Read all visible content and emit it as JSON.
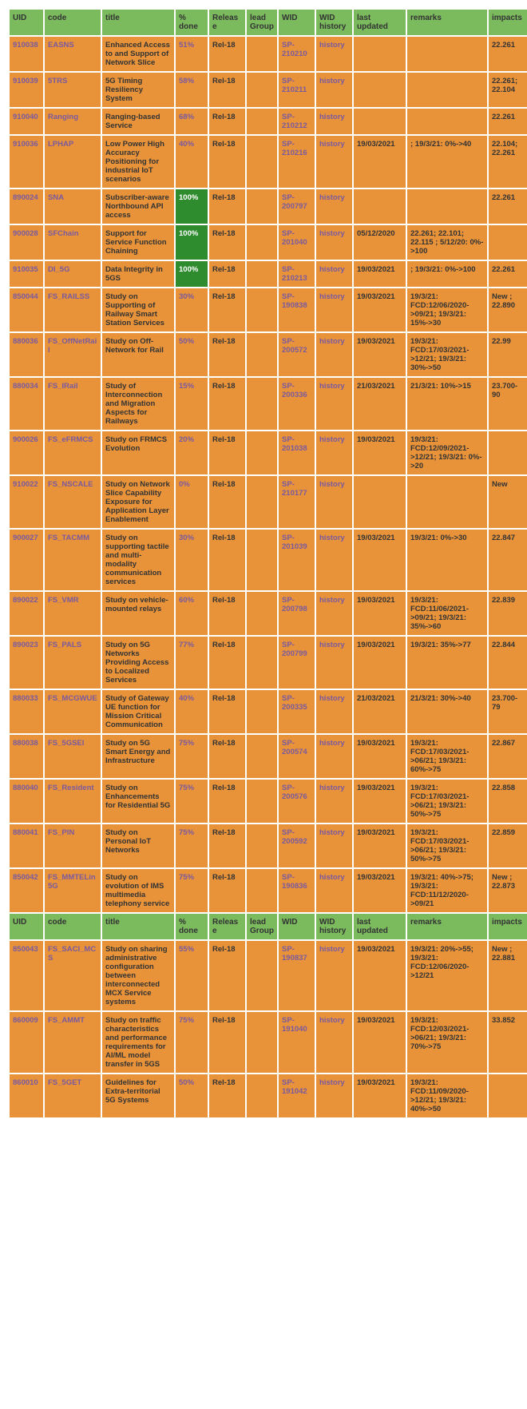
{
  "headers": [
    "UID",
    "code",
    "title",
    "% done",
    "Release",
    "lead Group",
    "WID",
    "WID history",
    "last updated",
    "remarks",
    "impacts"
  ],
  "rows": [
    {
      "uid": "910038",
      "code": "EASNS",
      "title": "Enhanced Access to and Support of Network Slice",
      "pct": "51%",
      "pct100": false,
      "release": "Rel-18",
      "lead": "",
      "wid": "SP-210210",
      "widh": "history",
      "last": "",
      "remarks": "",
      "impacts": "22.261"
    },
    {
      "uid": "910039",
      "code": "5TRS",
      "title": "5G Timing Resiliency System",
      "pct": "58%",
      "pct100": false,
      "release": "Rel-18",
      "lead": "",
      "wid": "SP-210211",
      "widh": "history",
      "last": "",
      "remarks": "",
      "impacts": "22.261; 22.104"
    },
    {
      "uid": "910040",
      "code": "Ranging",
      "title": "Ranging-based Service",
      "pct": "68%",
      "pct100": false,
      "release": "Rel-18",
      "lead": "",
      "wid": "SP-210212",
      "widh": "history",
      "last": "",
      "remarks": "",
      "impacts": "22.261"
    },
    {
      "uid": "910036",
      "code": "LPHAP",
      "title": "Low Power High Accuracy Positioning for industrial IoT scenarios",
      "pct": "40%",
      "pct100": false,
      "release": "Rel-18",
      "lead": "",
      "wid": "SP-210216",
      "widh": "history",
      "last": "19/03/2021",
      "remarks": "; 19/3/21: 0%->40",
      "impacts": "22.104; 22.261"
    },
    {
      "uid": "890024",
      "code": "SNA",
      "title": "Subscriber-aware Northbound API access",
      "pct": "100%",
      "pct100": true,
      "release": "Rel-18",
      "lead": "",
      "wid": "SP-200797",
      "widh": "history",
      "last": "",
      "remarks": "",
      "impacts": "22.261"
    },
    {
      "uid": "900028",
      "code": "SFChain",
      "title": "Support for Service Function Chaining",
      "pct": "100%",
      "pct100": true,
      "release": "Rel-18",
      "lead": "",
      "wid": "SP-201040",
      "widh": "history",
      "last": "05/12/2020",
      "remarks": "22.261; 22.101; 22.115 ; 5/12/20: 0%->100",
      "impacts": ""
    },
    {
      "uid": "910035",
      "code": "DI_5G",
      "title": "Data Integrity in 5GS",
      "pct": "100%",
      "pct100": true,
      "release": "Rel-18",
      "lead": "",
      "wid": "SP-210213",
      "widh": "history",
      "last": "19/03/2021",
      "remarks": "; 19/3/21: 0%->100",
      "impacts": "22.261"
    },
    {
      "uid": "850044",
      "code": "FS_RAILSS",
      "title": "Study on Supporting of Railway Smart Station Services",
      "pct": "30%",
      "pct100": false,
      "release": "Rel-18",
      "lead": "",
      "wid": "SP-190838",
      "widh": "history",
      "last": "19/03/2021",
      "remarks": "19/3/21: FCD:12/06/2020->09/21; 19/3/21: 15%->30",
      "impacts": "New ; 22.890"
    },
    {
      "uid": "880036",
      "code": "FS_OffNetRail",
      "title": "Study on Off-Network for Rail",
      "pct": "50%",
      "pct100": false,
      "release": "Rel-18",
      "lead": "",
      "wid": "SP-200572",
      "widh": "history",
      "last": "19/03/2021",
      "remarks": "19/3/21: FCD:17/03/2021->12/21; 19/3/21: 30%->50",
      "impacts": "22.99"
    },
    {
      "uid": "880034",
      "code": "FS_IRail",
      "title": "Study of Interconnection and Migration Aspects for Railways",
      "pct": "15%",
      "pct100": false,
      "release": "Rel-18",
      "lead": "",
      "wid": "SP-200336",
      "widh": "history",
      "last": "21/03/2021",
      "remarks": "21/3/21: 10%->15",
      "impacts": "23.700-90"
    },
    {
      "uid": "900026",
      "code": "FS_eFRMCS",
      "title": "Study on FRMCS Evolution",
      "pct": "20%",
      "pct100": false,
      "release": "Rel-18",
      "lead": "",
      "wid": "SP-201038",
      "widh": "history",
      "last": "19/03/2021",
      "remarks": "19/3/21: FCD:12/09/2021->12/21; 19/3/21: 0%->20",
      "impacts": ""
    },
    {
      "uid": "910022",
      "code": "FS_NSCALE",
      "title": "Study on Network Slice Capability Exposure for Application Layer Enablement",
      "pct": "0%",
      "pct100": false,
      "release": "Rel-18",
      "lead": "",
      "wid": "SP-210177",
      "widh": "history",
      "last": "",
      "remarks": "",
      "impacts": "New"
    },
    {
      "uid": "900027",
      "code": "FS_TACMM",
      "title": "Study on supporting tactile and multi-modality communication services",
      "pct": "30%",
      "pct100": false,
      "release": "Rel-18",
      "lead": "",
      "wid": "SP-201039",
      "widh": "history",
      "last": "19/03/2021",
      "remarks": "19/3/21: 0%->30",
      "impacts": "22.847"
    },
    {
      "uid": "890022",
      "code": "FS_VMR",
      "title": "Study on vehicle-mounted relays",
      "pct": "60%",
      "pct100": false,
      "release": "Rel-18",
      "lead": "",
      "wid": "SP-200798",
      "widh": "history",
      "last": "19/03/2021",
      "remarks": "19/3/21: FCD:11/06/2021->09/21; 19/3/21: 35%->60",
      "impacts": "22.839"
    },
    {
      "uid": "890023",
      "code": "FS_PALS",
      "title": "Study on 5G Networks Providing Access to Localized Services",
      "pct": "77%",
      "pct100": false,
      "release": "Rel-18",
      "lead": "",
      "wid": "SP-200799",
      "widh": "history",
      "last": "19/03/2021",
      "remarks": "19/3/21: 35%->77",
      "impacts": "22.844"
    },
    {
      "uid": "880033",
      "code": "FS_MCGWUE",
      "title": "Study of Gateway UE function for Mission Critical Communication",
      "pct": "40%",
      "pct100": false,
      "release": "Rel-18",
      "lead": "",
      "wid": "SP-200335",
      "widh": "history",
      "last": "21/03/2021",
      "remarks": "21/3/21: 30%->40",
      "impacts": "23.700-79"
    },
    {
      "uid": "880038",
      "code": "FS_5GSEI",
      "title": "Study on 5G Smart Energy and Infrastructure",
      "pct": "75%",
      "pct100": false,
      "release": "Rel-18",
      "lead": "",
      "wid": "SP-200574",
      "widh": "history",
      "last": "19/03/2021",
      "remarks": "19/3/21: FCD:17/03/2021->06/21; 19/3/21: 60%->75",
      "impacts": "22.867"
    },
    {
      "uid": "880040",
      "code": "FS_Resident",
      "title": "Study on Enhancements for Residential 5G",
      "pct": "75%",
      "pct100": false,
      "release": "Rel-18",
      "lead": "",
      "wid": "SP-200576",
      "widh": "history",
      "last": "19/03/2021",
      "remarks": "19/3/21: FCD:17/03/2021->06/21; 19/3/21: 50%->75",
      "impacts": "22.858"
    },
    {
      "uid": "880041",
      "code": "FS_PIN",
      "title": "Study on Personal IoT Networks",
      "pct": "75%",
      "pct100": false,
      "release": "Rel-18",
      "lead": "",
      "wid": "SP-200592",
      "widh": "history",
      "last": "19/03/2021",
      "remarks": "19/3/21: FCD:17/03/2021->06/21; 19/3/21: 50%->75",
      "impacts": "22.859"
    },
    {
      "uid": "850042",
      "code": "FS_MMTELin5G",
      "title": "Study on evolution of IMS multimedia telephony service",
      "pct": "75%",
      "pct100": false,
      "release": "Rel-18",
      "lead": "",
      "wid": "SP-190836",
      "widh": "history",
      "last": "19/03/2021",
      "remarks": "19/3/21: 40%->75; 19/3/21: FCD:11/12/2020->09/21",
      "impacts": "New ; 22.873"
    },
    {
      "header": true
    },
    {
      "uid": "850043",
      "code": "FS_SACI_MCS",
      "title": "Study on sharing administrative configuration between interconnected MCX Service systems",
      "pct": "55%",
      "pct100": false,
      "release": "Rel-18",
      "lead": "",
      "wid": "SP-190837",
      "widh": "history",
      "last": "19/03/2021",
      "remarks": "19/3/21: 20%->55; 19/3/21: FCD:12/06/2020->12/21",
      "impacts": "New ; 22.881"
    },
    {
      "uid": "860009",
      "code": "FS_AMMT",
      "title": "Study on traffic characteristics and performance requirements for AI/ML model transfer in 5GS",
      "pct": "75%",
      "pct100": false,
      "release": "Rel-18",
      "lead": "",
      "wid": "SP-191040",
      "widh": "history",
      "last": "19/03/2021",
      "remarks": "19/3/21: FCD:12/03/2021->06/21; 19/3/21: 70%->75",
      "impacts": "33.852"
    },
    {
      "uid": "860010",
      "code": "FS_5GET",
      "title": "Guidelines for Extra-territorial 5G Systems",
      "pct": "50%",
      "pct100": false,
      "release": "Rel-18",
      "lead": "",
      "wid": "SP-191042",
      "widh": "history",
      "last": "19/03/2021",
      "remarks": "19/3/21: FCD:11/09/2020->12/21; 19/3/21: 40%->50",
      "impacts": ""
    }
  ]
}
